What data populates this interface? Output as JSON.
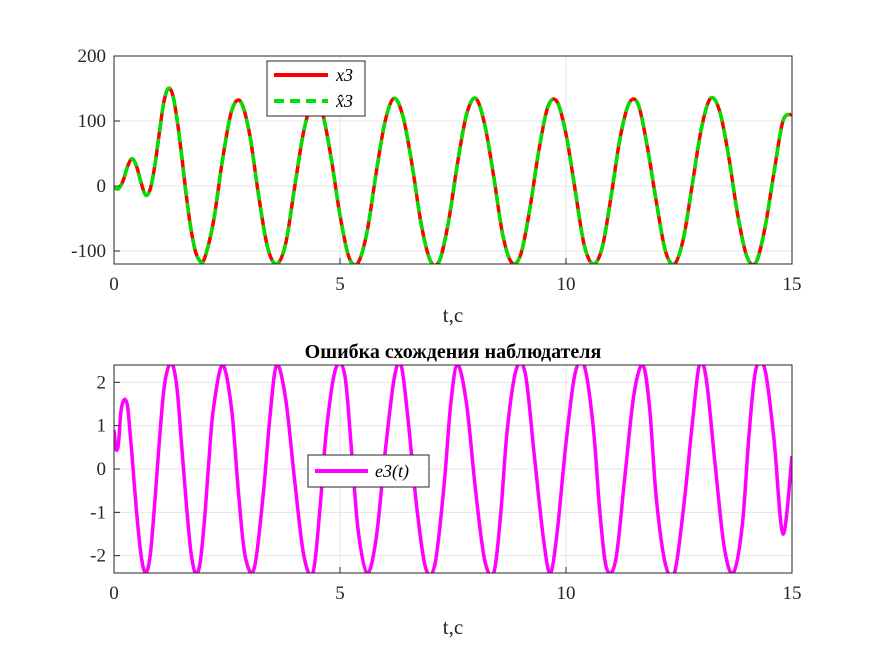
{
  "chart_data": [
    {
      "type": "line",
      "title": "",
      "xlabel": "t,c",
      "ylabel": "",
      "xlim": [
        0,
        15
      ],
      "ylim": [
        -120,
        200
      ],
      "xticks": [
        "0",
        "5",
        "10",
        "15"
      ],
      "yticks": [
        "-100",
        "0",
        "100",
        "200"
      ],
      "grid": true,
      "legend_position": "top-left",
      "series": [
        {
          "name": "x3",
          "color": "#ff0000",
          "style": "solid",
          "x": [
            0,
            0.1,
            0.2,
            0.3,
            0.4,
            0.5,
            0.6,
            0.7,
            0.8,
            0.9,
            1.0,
            1.1,
            1.2,
            1.3,
            1.4,
            1.5,
            1.6,
            1.7,
            1.8,
            1.9,
            2.0,
            2.2,
            2.4,
            2.6,
            2.8,
            3.0,
            3.2,
            3.4,
            3.6,
            3.8,
            4.0,
            4.2,
            4.4,
            4.6,
            4.8,
            5.0,
            5.2,
            5.4,
            5.6,
            5.8,
            6.0,
            6.2,
            6.4,
            6.6,
            6.8,
            7.0,
            7.2,
            7.4,
            7.6,
            7.8,
            8.0,
            8.2,
            8.4,
            8.6,
            8.8,
            9.0,
            9.2,
            9.4,
            9.6,
            9.8,
            10.0,
            10.2,
            10.4,
            10.6,
            10.8,
            11.0,
            11.2,
            11.4,
            11.6,
            11.8,
            12.0,
            12.2,
            12.4,
            12.6,
            12.8,
            13.0,
            13.2,
            13.4,
            13.6,
            13.8,
            14.0,
            14.2,
            14.4,
            14.6,
            14.8,
            15.0
          ],
          "y": [
            -3,
            -4,
            8,
            30,
            42,
            30,
            5,
            -14,
            -5,
            30,
            80,
            128,
            150,
            140,
            100,
            45,
            -15,
            -65,
            -100,
            -115,
            -112,
            -55,
            40,
            115,
            130,
            80,
            -15,
            -95,
            -120,
            -88,
            0,
            85,
            130,
            115,
            45,
            -45,
            -110,
            -118,
            -70,
            20,
            100,
            135,
            105,
            30,
            -60,
            -115,
            -115,
            -55,
            35,
            110,
            135,
            95,
            15,
            -75,
            -118,
            -105,
            -35,
            55,
            122,
            130,
            80,
            -5,
            -90,
            -120,
            -95,
            -15,
            75,
            128,
            125,
            60,
            -25,
            -100,
            -120,
            -80,
            5,
            90,
            135,
            115,
            45,
            -45,
            -108,
            -118,
            -65,
            20,
            100,
            110
          ],
          "note_values_are_fitted_to_gridlines": ""
        },
        {
          "name": "x̂3",
          "color": "#00e000",
          "style": "dashed",
          "same_as_series_index": 0
        }
      ]
    },
    {
      "type": "line",
      "title": "Ошибка схождения наблюдателя",
      "xlabel": "t,c",
      "ylabel": "",
      "xlim": [
        0,
        15
      ],
      "ylim": [
        -2.4,
        2.4
      ],
      "xticks": [
        "0",
        "5",
        "10",
        "15"
      ],
      "yticks": [
        "-2",
        "-1",
        "0",
        "1",
        "2"
      ],
      "grid": true,
      "legend_position": "center",
      "series": [
        {
          "name": "e3(t)",
          "color": "#ff00ff",
          "style": "solid",
          "x": [
            0,
            0.05,
            0.1,
            0.15,
            0.2,
            0.25,
            0.3,
            0.35,
            0.4,
            0.5,
            0.6,
            0.7,
            0.8,
            0.9,
            1.0,
            1.1,
            1.2,
            1.3,
            1.4,
            1.5,
            1.6,
            1.7,
            1.8,
            1.9,
            2.0,
            2.1,
            2.2,
            2.4,
            2.6,
            2.75,
            2.9,
            3.1,
            3.3,
            3.45,
            3.6,
            3.8,
            4.0,
            4.2,
            4.4,
            4.55,
            4.7,
            4.9,
            5.1,
            5.25,
            5.4,
            5.6,
            5.8,
            6.0,
            6.2,
            6.35,
            6.5,
            6.7,
            6.9,
            7.1,
            7.3,
            7.45,
            7.6,
            7.8,
            8.0,
            8.2,
            8.4,
            8.55,
            8.7,
            8.9,
            9.1,
            9.3,
            9.5,
            9.65,
            9.8,
            10.0,
            10.2,
            10.4,
            10.6,
            10.75,
            10.9,
            11.1,
            11.3,
            11.5,
            11.7,
            11.85,
            12.0,
            12.2,
            12.4,
            12.6,
            12.8,
            12.95,
            13.1,
            13.3,
            13.5,
            13.7,
            13.9,
            14.05,
            14.2,
            14.4,
            14.6,
            14.8,
            15.0
          ],
          "y": [
            0.9,
            0.45,
            0.6,
            1.3,
            1.55,
            1.6,
            1.45,
            0.9,
            0.3,
            -1.0,
            -2.0,
            -2.4,
            -2.0,
            -0.8,
            0.6,
            1.8,
            2.35,
            2.4,
            1.8,
            0.5,
            -0.8,
            -1.9,
            -2.4,
            -2.2,
            -1.2,
            0.2,
            1.4,
            2.4,
            1.4,
            -0.5,
            -2.0,
            -2.3,
            -0.6,
            1.2,
            2.4,
            1.6,
            -0.3,
            -2.0,
            -2.4,
            -1.0,
            0.9,
            2.3,
            2.2,
            0.5,
            -1.4,
            -2.4,
            -1.6,
            0.4,
            2.1,
            2.4,
            1.2,
            -0.9,
            -2.3,
            -2.2,
            -0.4,
            1.5,
            2.4,
            1.5,
            -0.5,
            -2.1,
            -2.4,
            -1.1,
            0.9,
            2.3,
            2.2,
            0.3,
            -1.6,
            -2.4,
            -1.5,
            0.6,
            2.2,
            2.4,
            1.0,
            -1.0,
            -2.3,
            -2.1,
            -0.2,
            1.7,
            2.4,
            1.4,
            -0.7,
            -2.2,
            -2.4,
            -0.9,
            1.1,
            2.4,
            2.1,
            0.1,
            -1.8,
            -2.4,
            -1.3,
            0.8,
            2.3,
            2.3,
            0.7,
            -1.5,
            0.3
          ]
        }
      ]
    }
  ]
}
